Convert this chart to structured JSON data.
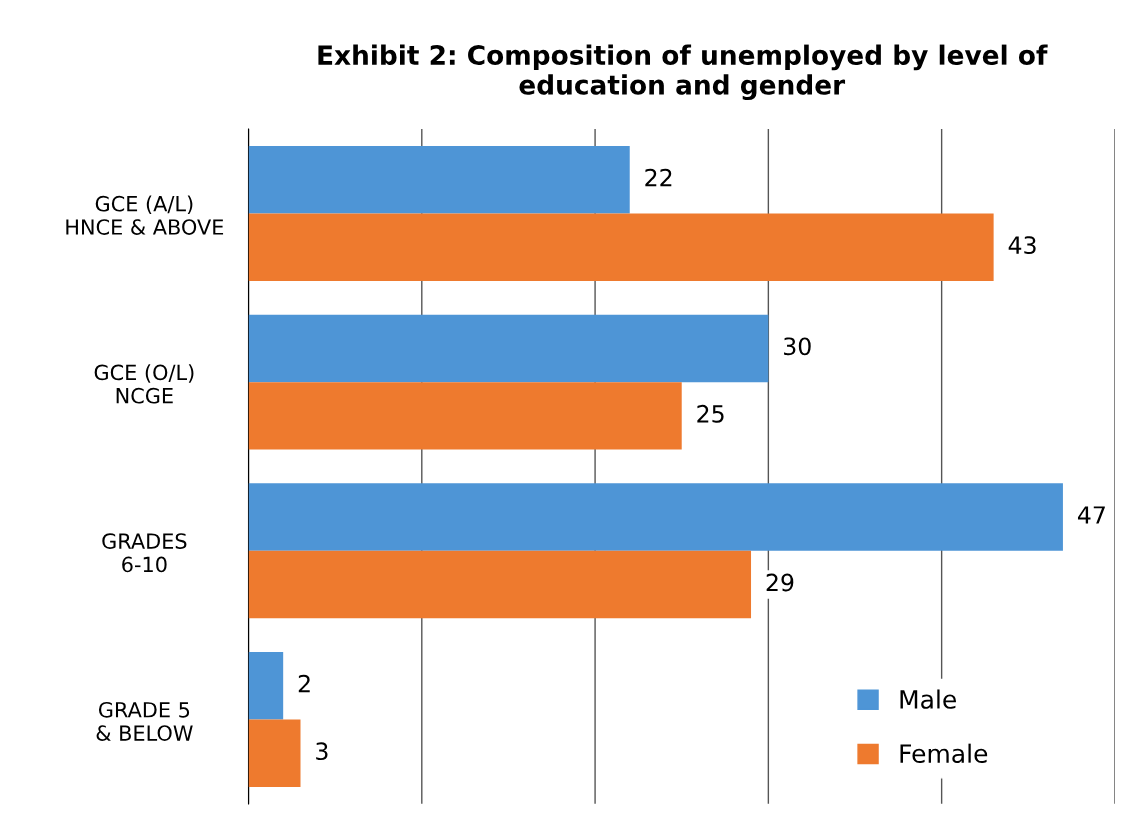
{
  "chart_data": {
    "type": "bar",
    "orientation": "horizontal",
    "title": "Exhibit 2: Composition of unemployed by level of\neducation and gender",
    "categories": [
      "GCE (A/L)\nHNCE & ABOVE",
      "GCE (O/L)\nNCGE",
      "GRADES\n6-10",
      "GRADE 5\n& BELOW"
    ],
    "series": [
      {
        "name": "Male",
        "color": "#4e95d6",
        "values": [
          22,
          30,
          47,
          2
        ]
      },
      {
        "name": "Female",
        "color": "#ee7a2e",
        "values": [
          43,
          25,
          29,
          3
        ]
      }
    ],
    "xlim": [
      0,
      50
    ],
    "xticks": [
      {
        "value": 0,
        "label": null
      },
      {
        "value": 10,
        "label": null
      },
      {
        "value": 20,
        "label": null
      },
      {
        "value": 30,
        "label": null
      },
      {
        "value": 40,
        "label": null
      },
      {
        "value": 50,
        "label": null
      }
    ],
    "tick_labels": "y",
    "grid": "x",
    "legend": "bottom right",
    "data_labels": true
  }
}
